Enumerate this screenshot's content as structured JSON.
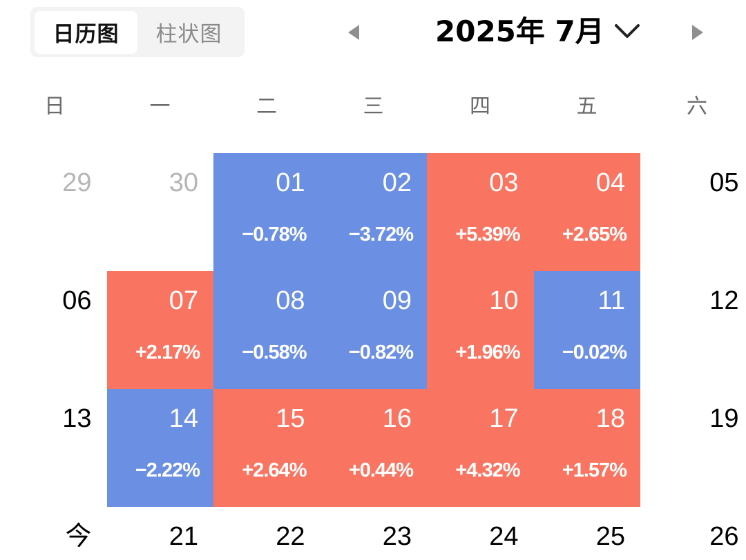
{
  "view_toggle": {
    "calendar_label": "日历图",
    "bar_label": "柱状图"
  },
  "header": {
    "title": "2025年 7月"
  },
  "weekdays": [
    "日",
    "一",
    "二",
    "三",
    "四",
    "五",
    "六"
  ],
  "colors": {
    "up": "#f97461",
    "down": "#6b8fe3"
  },
  "weeks": [
    [
      {
        "day": "29",
        "state": "muted",
        "change": ""
      },
      {
        "day": "30",
        "state": "muted",
        "change": ""
      },
      {
        "day": "01",
        "state": "down",
        "change": "−0.78%"
      },
      {
        "day": "02",
        "state": "down",
        "change": "−3.72%"
      },
      {
        "day": "03",
        "state": "up",
        "change": "+5.39%"
      },
      {
        "day": "04",
        "state": "up",
        "change": "+2.65%"
      },
      {
        "day": "05",
        "state": "plain",
        "change": ""
      }
    ],
    [
      {
        "day": "06",
        "state": "plain",
        "change": ""
      },
      {
        "day": "07",
        "state": "up",
        "change": "+2.17%"
      },
      {
        "day": "08",
        "state": "down",
        "change": "−0.58%"
      },
      {
        "day": "09",
        "state": "down",
        "change": "−0.82%"
      },
      {
        "day": "10",
        "state": "up",
        "change": "+1.96%"
      },
      {
        "day": "11",
        "state": "down",
        "change": "−0.02%"
      },
      {
        "day": "12",
        "state": "plain",
        "change": ""
      }
    ],
    [
      {
        "day": "13",
        "state": "plain",
        "change": ""
      },
      {
        "day": "14",
        "state": "down",
        "change": "−2.22%"
      },
      {
        "day": "15",
        "state": "up",
        "change": "+2.64%"
      },
      {
        "day": "16",
        "state": "up",
        "change": "+0.44%"
      },
      {
        "day": "17",
        "state": "up",
        "change": "+4.32%"
      },
      {
        "day": "18",
        "state": "up",
        "change": "+1.57%"
      },
      {
        "day": "19",
        "state": "plain",
        "change": ""
      }
    ],
    [
      {
        "day": "今",
        "state": "plain",
        "change": ""
      },
      {
        "day": "21",
        "state": "plain",
        "change": ""
      },
      {
        "day": "22",
        "state": "plain",
        "change": ""
      },
      {
        "day": "23",
        "state": "plain",
        "change": ""
      },
      {
        "day": "24",
        "state": "plain",
        "change": ""
      },
      {
        "day": "25",
        "state": "plain",
        "change": ""
      },
      {
        "day": "26",
        "state": "plain",
        "change": ""
      }
    ]
  ]
}
